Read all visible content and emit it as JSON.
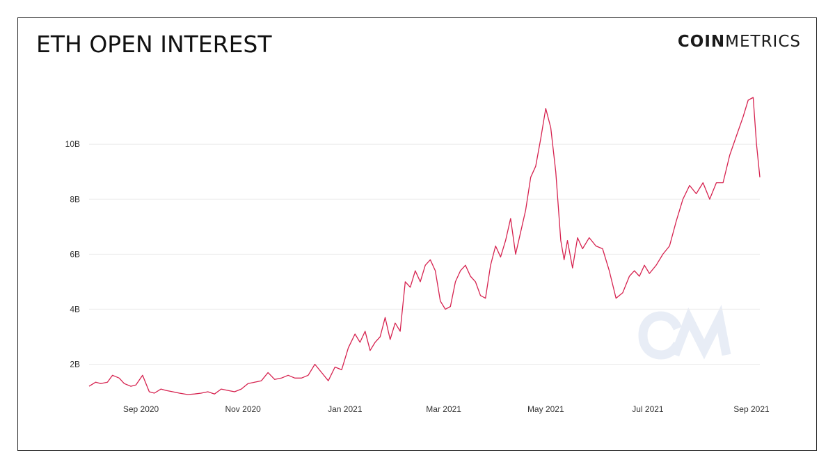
{
  "header": {
    "title": "ETH OPEN INTEREST",
    "logo_bold": "COIN",
    "logo_light": "METRICS",
    "watermark": "CM"
  },
  "colors": {
    "line": "#d6224f",
    "grid": "#ececec",
    "text": "#333333",
    "watermark": "#e8edf6"
  },
  "chart_data": {
    "type": "line",
    "title": "ETH OPEN INTEREST",
    "xlabel": "",
    "ylabel": "",
    "legend": "none",
    "grid": true,
    "x_ticks": [
      "2020-09-01",
      "2020-11-01",
      "2021-01-01",
      "2021-03-01",
      "2021-05-01",
      "2021-07-01",
      "2021-09-01"
    ],
    "x_tick_labels": [
      "Sep 2020",
      "Nov 2020",
      "Jan 2021",
      "Mar 2021",
      "May 2021",
      "Jul 2021",
      "Sep 2021"
    ],
    "xlim": [
      "2020-08-01",
      "2021-09-06"
    ],
    "y_ticks": [
      2,
      4,
      6,
      8,
      10
    ],
    "y_tick_labels": [
      "2B",
      "4B",
      "6B",
      "8B",
      "10B"
    ],
    "ylim": [
      0.9,
      11.7
    ],
    "y_unit": "billions USD",
    "series": [
      {
        "x": [
          "2020-08-01",
          "2020-08-05",
          "2020-08-08",
          "2020-08-12",
          "2020-08-15",
          "2020-08-19",
          "2020-08-22",
          "2020-08-26",
          "2020-08-29",
          "2020-09-02",
          "2020-09-06",
          "2020-09-09",
          "2020-09-13",
          "2020-09-16",
          "2020-09-20",
          "2020-09-24",
          "2020-09-29",
          "2020-10-03",
          "2020-10-07",
          "2020-10-11",
          "2020-10-15",
          "2020-10-19",
          "2020-10-23",
          "2020-10-27",
          "2020-10-31",
          "2020-11-04",
          "2020-11-08",
          "2020-11-12",
          "2020-11-16",
          "2020-11-20",
          "2020-11-24",
          "2020-11-28",
          "2020-12-02",
          "2020-12-06",
          "2020-12-10",
          "2020-12-14",
          "2020-12-18",
          "2020-12-22",
          "2020-12-26",
          "2020-12-30",
          "2021-01-03",
          "2021-01-07",
          "2021-01-10",
          "2021-01-13",
          "2021-01-16",
          "2021-01-19",
          "2021-01-22",
          "2021-01-25",
          "2021-01-28",
          "2021-01-31",
          "2021-02-03",
          "2021-02-06",
          "2021-02-09",
          "2021-02-12",
          "2021-02-15",
          "2021-02-18",
          "2021-02-21",
          "2021-02-24",
          "2021-02-27",
          "2021-03-02",
          "2021-03-05",
          "2021-03-08",
          "2021-03-11",
          "2021-03-14",
          "2021-03-17",
          "2021-03-20",
          "2021-03-23",
          "2021-03-26",
          "2021-03-29",
          "2021-04-01",
          "2021-04-04",
          "2021-04-07",
          "2021-04-10",
          "2021-04-13",
          "2021-04-16",
          "2021-04-19",
          "2021-04-22",
          "2021-04-25",
          "2021-04-28",
          "2021-05-01",
          "2021-05-04",
          "2021-05-07",
          "2021-05-10",
          "2021-05-12",
          "2021-05-14",
          "2021-05-17",
          "2021-05-20",
          "2021-05-23",
          "2021-05-27",
          "2021-05-31",
          "2021-06-04",
          "2021-06-08",
          "2021-06-12",
          "2021-06-16",
          "2021-06-20",
          "2021-06-23",
          "2021-06-26",
          "2021-06-29",
          "2021-07-02",
          "2021-07-06",
          "2021-07-10",
          "2021-07-14",
          "2021-07-18",
          "2021-07-22",
          "2021-07-26",
          "2021-07-30",
          "2021-08-03",
          "2021-08-07",
          "2021-08-11",
          "2021-08-15",
          "2021-08-19",
          "2021-08-23",
          "2021-08-27",
          "2021-08-30",
          "2021-09-02",
          "2021-09-04",
          "2021-09-06"
        ],
        "y": [
          1.2,
          1.35,
          1.3,
          1.35,
          1.6,
          1.5,
          1.3,
          1.2,
          1.25,
          1.6,
          1.0,
          0.95,
          1.1,
          1.05,
          1.0,
          0.95,
          0.9,
          0.92,
          0.95,
          1.0,
          0.92,
          1.1,
          1.05,
          1.0,
          1.1,
          1.3,
          1.35,
          1.4,
          1.7,
          1.45,
          1.5,
          1.6,
          1.5,
          1.5,
          1.6,
          2.0,
          1.7,
          1.4,
          1.9,
          1.8,
          2.6,
          3.1,
          2.8,
          3.2,
          2.5,
          2.8,
          3.0,
          3.7,
          2.9,
          3.5,
          3.2,
          5.0,
          4.8,
          5.4,
          5.0,
          5.6,
          5.8,
          5.4,
          4.3,
          4.0,
          4.1,
          5.0,
          5.4,
          5.6,
          5.2,
          5.0,
          4.5,
          4.4,
          5.6,
          6.3,
          5.9,
          6.5,
          7.3,
          6.0,
          6.8,
          7.6,
          8.8,
          9.2,
          10.2,
          11.3,
          10.6,
          9.0,
          6.5,
          5.8,
          6.5,
          5.5,
          6.6,
          6.2,
          6.6,
          6.3,
          6.2,
          5.4,
          4.4,
          4.6,
          5.2,
          5.4,
          5.2,
          5.6,
          5.3,
          5.6,
          6.0,
          6.3,
          7.2,
          8.0,
          8.5,
          8.2,
          8.6,
          8.0,
          8.6,
          8.6,
          9.6,
          10.3,
          11.0,
          11.6,
          11.7,
          10.0,
          8.8
        ]
      }
    ]
  }
}
